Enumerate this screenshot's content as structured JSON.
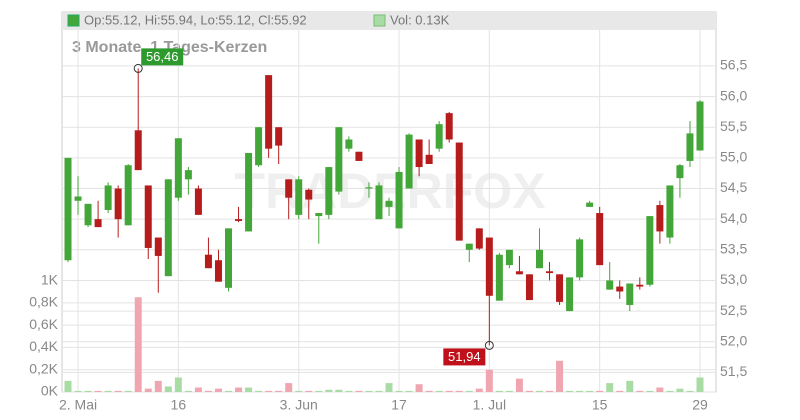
{
  "chart_data": {
    "type": "candlestick",
    "header": [
      "Op:55.12, Hi:55.94, Lo:55.12, Cl:55.92",
      "Vol: 0.13K"
    ],
    "title": "3 Monate, 1 Tages-Kerzen",
    "watermark": "TRADERFOX",
    "max_label": "56,46",
    "min_label": "51,94",
    "categories": [
      null,
      "2. Mai",
      null,
      null,
      null,
      null,
      null,
      null,
      null,
      null,
      null,
      "16",
      null,
      null,
      null,
      null,
      null,
      null,
      null,
      null,
      null,
      null,
      null,
      "3. Jun",
      null,
      null,
      null,
      null,
      null,
      null,
      null,
      null,
      null,
      "17",
      null,
      null,
      null,
      null,
      null,
      null,
      null,
      null,
      "1. Jul",
      null,
      null,
      null,
      null,
      null,
      null,
      null,
      null,
      null,
      null,
      "15",
      null,
      null,
      null,
      null,
      null,
      null,
      null,
      null,
      null,
      "29"
    ],
    "open": [
      53.33,
      54.3,
      53.9,
      54.0,
      54.15,
      54.5,
      53.9,
      55.45,
      54.55,
      53.7,
      53.07,
      54.35,
      54.65,
      54.5,
      53.42,
      53.33,
      52.88,
      54.0,
      53.8,
      54.88,
      56.35,
      55.5,
      54.65,
      54.07,
      54.48,
      54.05,
      54.07,
      54.45,
      55.15,
      55.1,
      54.5,
      54.0,
      54.2,
      53.85,
      54.5,
      55.3,
      55.05,
      55.15,
      55.73,
      55.25,
      53.5,
      53.85,
      53.7,
      52.67,
      53.25,
      53.15,
      53.1,
      53.2,
      53.15,
      53.1,
      52.5,
      53.05,
      54.2,
      54.1,
      52.85,
      52.9,
      52.6,
      52.93,
      52.93,
      54.23,
      53.7,
      54.67,
      54.95,
      55.12
    ],
    "high": [
      55.0,
      54.7,
      54.25,
      54.3,
      54.6,
      54.55,
      54.9,
      56.46,
      54.55,
      53.7,
      54.65,
      55.32,
      54.85,
      54.55,
      53.7,
      53.5,
      53.85,
      54.2,
      55.08,
      55.5,
      56.35,
      55.5,
      54.65,
      54.7,
      54.5,
      54.1,
      54.85,
      55.5,
      55.35,
      55.1,
      54.6,
      54.6,
      54.35,
      54.85,
      55.4,
      55.3,
      55.3,
      55.6,
      55.75,
      55.25,
      53.6,
      53.85,
      53.7,
      53.45,
      53.5,
      53.4,
      53.1,
      53.85,
      53.3,
      53.1,
      53.05,
      53.7,
      54.3,
      54.2,
      53.3,
      53.0,
      52.95,
      53.05,
      54.05,
      54.3,
      54.55,
      54.9,
      55.6,
      55.94
    ],
    "low": [
      53.3,
      54.07,
      53.87,
      53.87,
      54.1,
      53.7,
      53.9,
      54.8,
      53.35,
      52.8,
      53.07,
      54.3,
      54.4,
      54.07,
      53.2,
      52.98,
      52.82,
      53.95,
      53.8,
      54.85,
      55.0,
      54.9,
      54.0,
      54.0,
      54.0,
      53.6,
      54.0,
      54.4,
      55.1,
      54.95,
      54.35,
      54.0,
      54.05,
      53.85,
      54.5,
      54.7,
      54.9,
      55.1,
      55.25,
      53.65,
      53.3,
      53.5,
      51.94,
      52.67,
      53.2,
      53.1,
      52.68,
      53.2,
      53.0,
      52.6,
      52.5,
      53.0,
      54.2,
      53.25,
      52.85,
      52.7,
      52.5,
      52.85,
      52.9,
      53.6,
      53.6,
      54.35,
      54.85,
      55.12
    ],
    "close": [
      55.0,
      54.37,
      54.25,
      53.87,
      54.55,
      54.0,
      54.88,
      54.8,
      53.53,
      53.4,
      54.65,
      55.32,
      54.8,
      54.07,
      53.2,
      52.98,
      53.85,
      53.97,
      55.08,
      55.5,
      55.15,
      55.2,
      54.35,
      54.65,
      54.32,
      54.1,
      54.85,
      55.5,
      55.3,
      54.95,
      54.52,
      54.55,
      54.3,
      54.77,
      55.38,
      54.85,
      54.9,
      55.55,
      55.3,
      53.65,
      53.6,
      53.52,
      52.75,
      53.42,
      53.5,
      53.1,
      52.68,
      53.5,
      53.12,
      52.65,
      53.05,
      53.67,
      54.27,
      53.25,
      53.0,
      52.82,
      52.95,
      52.9,
      54.05,
      53.8,
      54.55,
      54.88,
      55.4,
      55.92
    ],
    "volume": [
      0.1,
      0.01,
      0.01,
      0.01,
      0.01,
      0.01,
      0.01,
      0.85,
      0.03,
      0.1,
      0.05,
      0.13,
      0.01,
      0.04,
      0.01,
      0.03,
      0.01,
      0.04,
      0.04,
      0.01,
      0.01,
      0.01,
      0.08,
      0.01,
      0.01,
      0.01,
      0.02,
      0.02,
      0.01,
      0.01,
      0.01,
      0.01,
      0.08,
      0.01,
      0.01,
      0.07,
      0.01,
      0.01,
      0.01,
      0.01,
      0.01,
      0.03,
      0.2,
      0.01,
      0.01,
      0.12,
      0.01,
      0.01,
      0.01,
      0.28,
      0.01,
      0.01,
      0.01,
      0.01,
      0.08,
      0.01,
      0.1,
      0.01,
      0.01,
      0.04,
      0.01,
      0.03,
      0.01,
      0.13
    ],
    "up_color": "#43a638",
    "down_color": "#b71c1c",
    "volume_up_color": "#a9dca4",
    "volume_down_color": "#f0a6b0",
    "ylim": [
      51.18,
      57.38
    ],
    "yticks": [
      {
        "value": 51.5,
        "label": "51,5"
      },
      {
        "value": 52,
        "label": "52,0"
      },
      {
        "value": 52.5,
        "label": "52,5"
      },
      {
        "value": 53,
        "label": "53,0"
      },
      {
        "value": 53.5,
        "label": "53,5"
      },
      {
        "value": 54,
        "label": "54,0"
      },
      {
        "value": 54.5,
        "label": "54,5"
      },
      {
        "value": 55,
        "label": "55,0"
      },
      {
        "value": 55.5,
        "label": "55,5"
      },
      {
        "value": 56,
        "label": "56,0"
      },
      {
        "value": 56.5,
        "label": "56,5"
      }
    ],
    "y2lim": [
      0,
      3.41
    ],
    "y2ticks": [
      {
        "value": 0,
        "label": "0K"
      },
      {
        "value": 0.2,
        "label": "0,2K"
      },
      {
        "value": 0.4,
        "label": "0,4K"
      },
      {
        "value": 0.6,
        "label": "0,6K"
      },
      {
        "value": 0.8,
        "label": "0,8K"
      },
      {
        "value": 1,
        "label": "1K"
      }
    ],
    "grid": true
  }
}
